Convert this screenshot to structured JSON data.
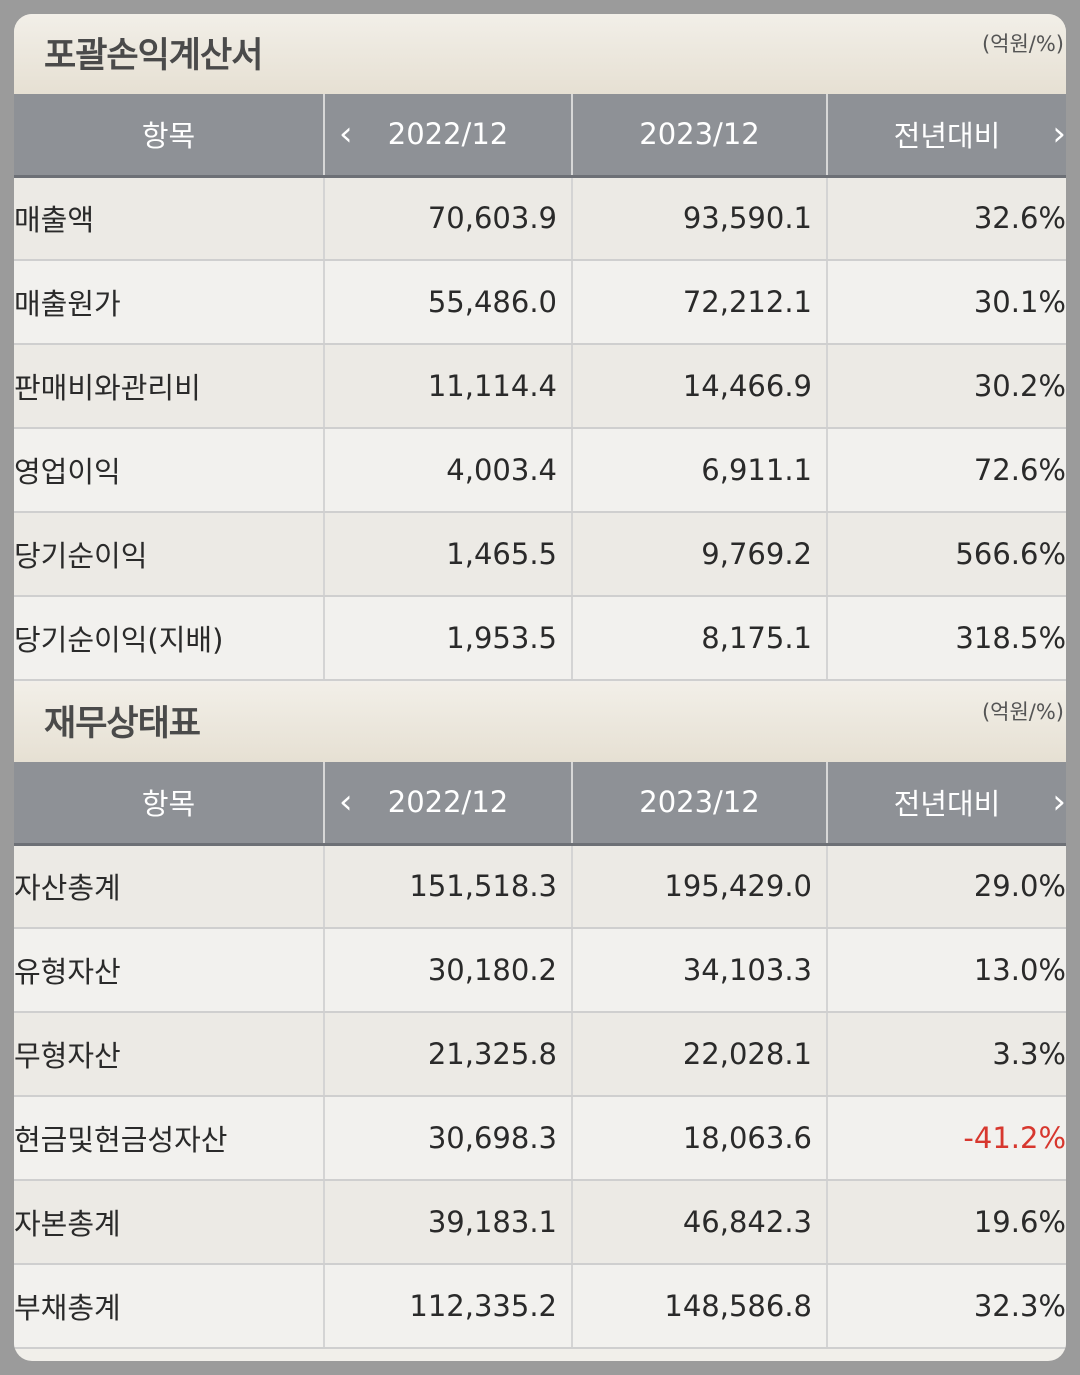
{
  "income": {
    "title": "포괄손익계산서",
    "unit": "(억원/%)",
    "headers": [
      "항목",
      "2022/12",
      "2023/12",
      "전년대비"
    ],
    "rows": [
      {
        "label": "매출액",
        "v1": "70,603.9",
        "v2": "93,590.1",
        "yoy": "32.6%"
      },
      {
        "label": "매출원가",
        "v1": "55,486.0",
        "v2": "72,212.1",
        "yoy": "30.1%"
      },
      {
        "label": "판매비와관리비",
        "v1": "11,114.4",
        "v2": "14,466.9",
        "yoy": "30.2%"
      },
      {
        "label": "영업이익",
        "v1": "4,003.4",
        "v2": "6,911.1",
        "yoy": "72.6%"
      },
      {
        "label": "당기순이익",
        "v1": "1,465.5",
        "v2": "9,769.2",
        "yoy": "566.6%"
      },
      {
        "label": "당기순이익(지배)",
        "v1": "1,953.5",
        "v2": "8,175.1",
        "yoy": "318.5%"
      }
    ]
  },
  "balance": {
    "title": "재무상태표",
    "unit": "(억원/%)",
    "headers": [
      "항목",
      "2022/12",
      "2023/12",
      "전년대비"
    ],
    "rows": [
      {
        "label": "자산총계",
        "v1": "151,518.3",
        "v2": "195,429.0",
        "yoy": "29.0%"
      },
      {
        "label": "유형자산",
        "v1": "30,180.2",
        "v2": "34,103.3",
        "yoy": "13.0%"
      },
      {
        "label": "무형자산",
        "v1": "21,325.8",
        "v2": "22,028.1",
        "yoy": "3.3%"
      },
      {
        "label": "현금및현금성자산",
        "v1": "30,698.3",
        "v2": "18,063.6",
        "yoy": "-41.2%"
      },
      {
        "label": "자본총계",
        "v1": "39,183.1",
        "v2": "46,842.3",
        "yoy": "19.6%"
      },
      {
        "label": "부채총계",
        "v1": "112,335.2",
        "v2": "148,586.8",
        "yoy": "32.3%"
      }
    ]
  },
  "colors": {
    "negative": "#d7372e",
    "header_bg": "#8e9196"
  },
  "icons": {
    "prev": "chevron-left-icon",
    "next": "chevron-right-icon"
  }
}
